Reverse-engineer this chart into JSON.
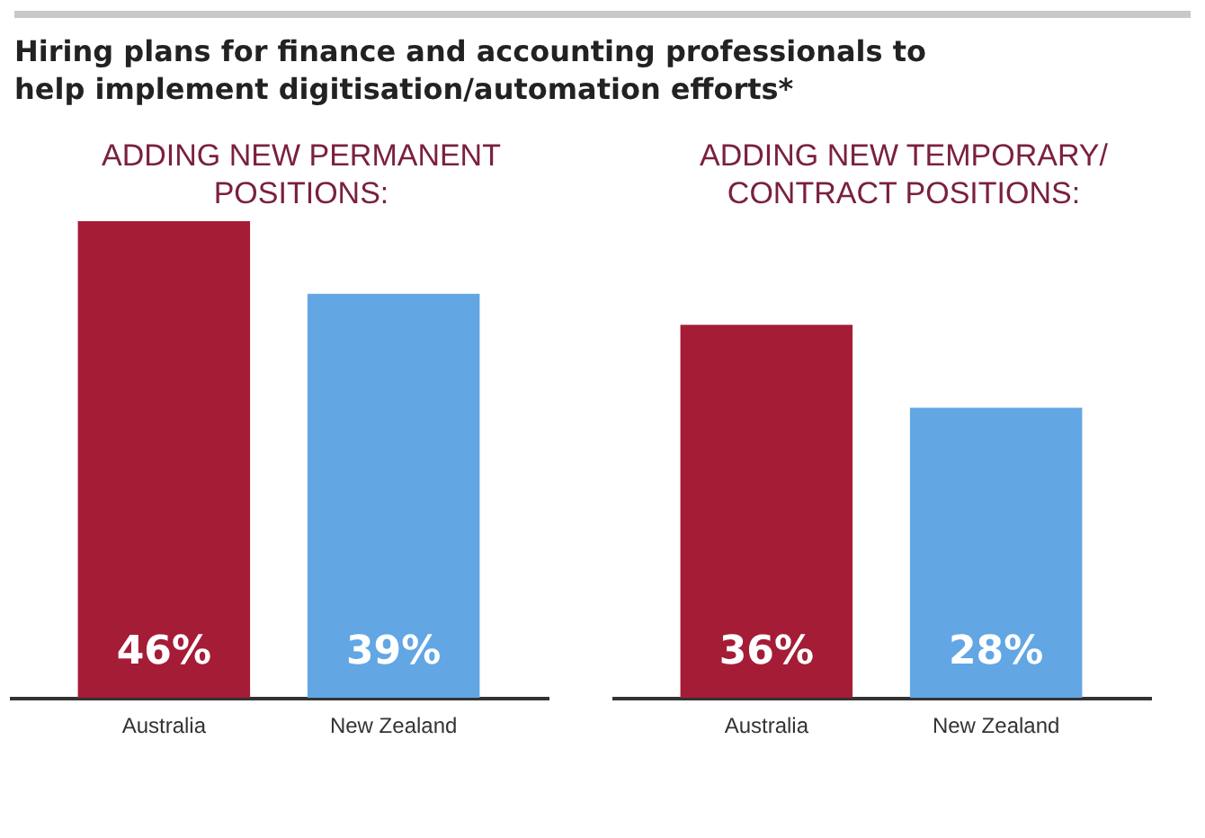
{
  "chart_data": [
    {
      "type": "bar",
      "title": "Hiring plans for finance and accounting professionals to help implement digitisation/automation efforts*",
      "subtitle": "ADDING NEW PERMANENT POSITIONS:",
      "categories": [
        "Australia",
        "New Zealand"
      ],
      "values": [
        46,
        39
      ],
      "colors": [
        "#a51c36",
        "#62a6e4"
      ],
      "value_labels": [
        "46%",
        "39%"
      ],
      "legend": false,
      "grid": false
    },
    {
      "type": "bar",
      "subtitle": "ADDING NEW TEMPORARY/ CONTRACT POSITIONS:",
      "categories": [
        "Australia",
        "New Zealand"
      ],
      "values": [
        36,
        28
      ],
      "colors": [
        "#a51c36",
        "#62a6e4"
      ],
      "value_labels": [
        "36%",
        "28%"
      ],
      "legend": false,
      "grid": false
    }
  ]
}
